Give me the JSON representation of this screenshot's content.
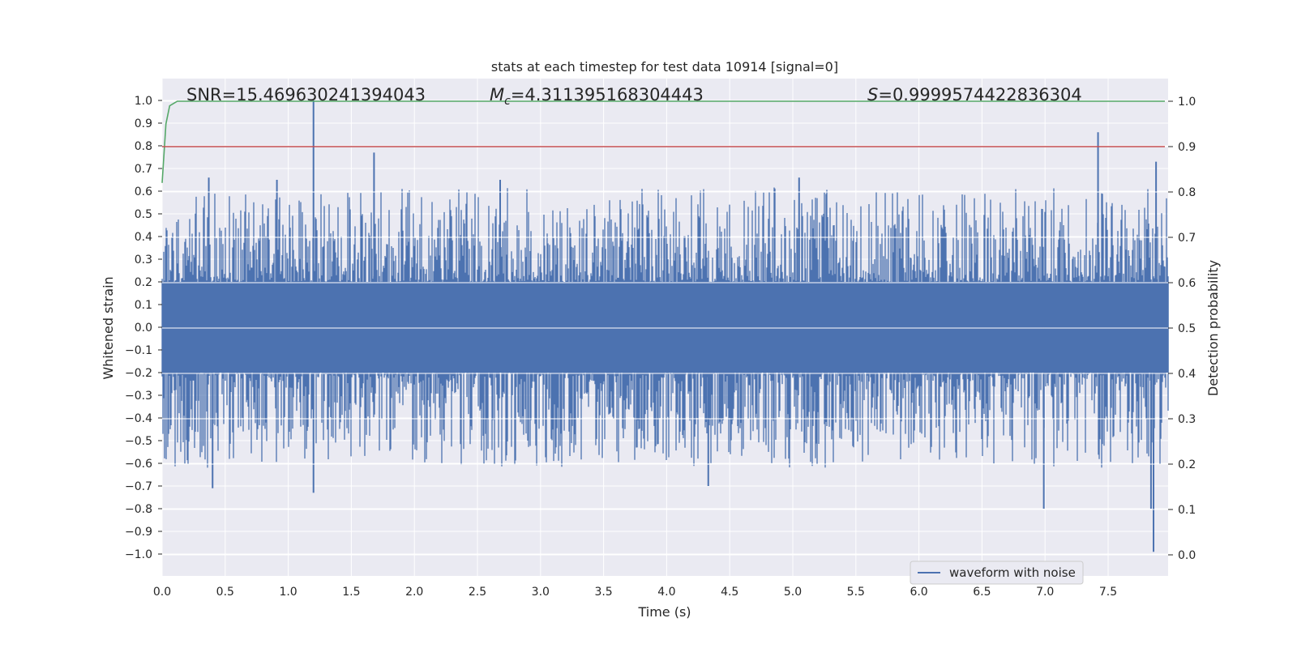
{
  "chart_data": {
    "type": "line",
    "title": "stats at each timestep for test data 10914 [signal=0]",
    "xlabel": "Time (s)",
    "ylabel": "Whitened strain",
    "y2label": "Detection probability",
    "xlim": [
      0.0,
      8.0
    ],
    "ylim": [
      -1.1,
      1.1
    ],
    "y2lim": [
      -0.05,
      1.05
    ],
    "x_ticks": [
      "0.0",
      "0.5",
      "1.0",
      "1.5",
      "2.0",
      "2.5",
      "3.0",
      "3.5",
      "4.0",
      "4.5",
      "5.0",
      "5.5",
      "6.0",
      "6.5",
      "7.0",
      "7.5"
    ],
    "y_ticks": [
      "1.0",
      "0.9",
      "0.8",
      "0.7",
      "0.6",
      "0.5",
      "0.4",
      "0.3",
      "0.2",
      "0.1",
      "0.0",
      "−0.1",
      "−0.2",
      "−0.3",
      "−0.4",
      "−0.5",
      "−0.6",
      "−0.7",
      "−0.8",
      "−0.9",
      "−1.0"
    ],
    "y2_ticks": [
      "1.0",
      "0.9",
      "0.8",
      "0.7",
      "0.6",
      "0.5",
      "0.4",
      "0.3",
      "0.2",
      "0.1",
      "0.0"
    ],
    "grid": true,
    "legend_position": "lower-right",
    "annotations": {
      "snr": "SNR=15.469630241394043",
      "mc_symbol": "M",
      "mc_sub": "c",
      "mc_value": "=4.311395168304443",
      "s_symbol": "S",
      "s_value": "=0.9999574422836304"
    },
    "series": [
      {
        "name": "waveform with noise",
        "axis": "left",
        "color": "#4c72b0",
        "style": "dense noise",
        "x_range": [
          0.0,
          7.98
        ],
        "core_amplitude": 0.2,
        "peaks": [
          {
            "x": 1.2,
            "y": 1.0
          },
          {
            "x": 1.68,
            "y": 0.77
          },
          {
            "x": 7.42,
            "y": 0.86
          },
          {
            "x": 0.37,
            "y": 0.66
          },
          {
            "x": 0.91,
            "y": 0.65
          },
          {
            "x": 2.68,
            "y": 0.65
          },
          {
            "x": 5.05,
            "y": 0.66
          },
          {
            "x": 7.88,
            "y": 0.73
          },
          {
            "x": 1.2,
            "y": -0.73
          },
          {
            "x": 0.4,
            "y": -0.71
          },
          {
            "x": 4.33,
            "y": -0.7
          },
          {
            "x": 6.99,
            "y": -0.8
          },
          {
            "x": 7.86,
            "y": -0.99
          },
          {
            "x": 7.84,
            "y": -0.8
          }
        ]
      },
      {
        "axis": "right",
        "color": "#55a868",
        "x": [
          0.0,
          0.03,
          0.06,
          0.12,
          7.95
        ],
        "y": [
          0.82,
          0.95,
          0.99,
          1.0,
          1.0
        ]
      },
      {
        "axis": "right",
        "color": "#c44e52",
        "x": [
          0.0,
          7.95
        ],
        "y": [
          0.9,
          0.9
        ]
      }
    ]
  }
}
